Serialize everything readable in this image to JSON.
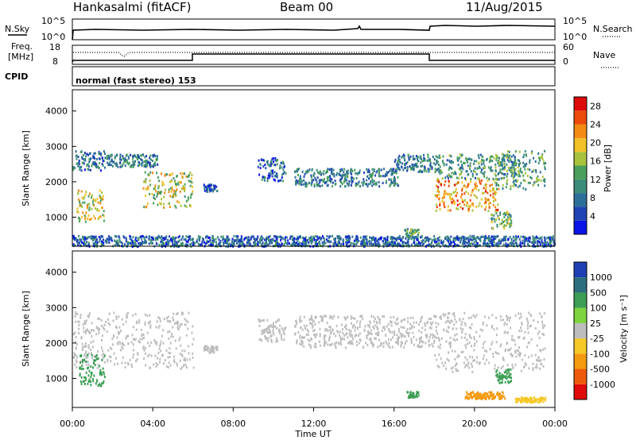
{
  "header": {
    "station": "Hankasalmi (fitACF)",
    "beam": "Beam 00",
    "date": "11/Aug/2015"
  },
  "top_panels": {
    "nsky_label": "N.Sky",
    "nsearch_label": "N.Search",
    "nsky_ticks": [
      "10^5",
      "10^0"
    ],
    "nsearch_ticks": [
      "10^5",
      "10^0"
    ],
    "freq_label": "Freq.",
    "freq_unit": "[MHz]",
    "freq_ticks": [
      "18",
      "8"
    ],
    "nave_label": "Nave",
    "nave_ticks": [
      "60",
      "0"
    ],
    "cpid_label": "CPID",
    "cpid_text": "normal (fast stereo) 153"
  },
  "x_axis": {
    "label": "Time UT",
    "ticks": [
      "00:00",
      "04:00",
      "08:00",
      "12:00",
      "16:00",
      "20:00",
      "00:00"
    ]
  },
  "power_panel": {
    "ylabel": "Slant Range [km]",
    "yticks": [
      "4000",
      "3000",
      "2000",
      "1000"
    ],
    "colorbar_label": "Power [dB]",
    "colorbar_ticks": [
      "28",
      "24",
      "20",
      "16",
      "12",
      "8",
      "4"
    ]
  },
  "velocity_panel": {
    "ylabel": "Slant Range [km]",
    "yticks": [
      "4000",
      "3000",
      "2000",
      "1000"
    ],
    "colorbar_label": "Velocity [m s⁻¹]",
    "colorbar_ticks": [
      "1000",
      "500",
      "100",
      "25",
      "-25",
      "-100",
      "-500",
      "-1000"
    ]
  },
  "chart_data": [
    {
      "type": "heatmap",
      "title": "Power",
      "xlabel": "Time UT",
      "ylabel": "Slant Range [km]",
      "xlim_hours": [
        0,
        24
      ],
      "ylim_km": [
        180,
        4600
      ],
      "color_scale": [
        "#0a14e6",
        "#1f44b4",
        "#2c6f9a",
        "#3c8c7a",
        "#4a9f5c",
        "#a8c23c",
        "#f2c028",
        "#f28a14",
        "#ec4a0a",
        "#dc0a0a"
      ],
      "colorbar_range_db": [
        0,
        30
      ],
      "regions": [
        {
          "t0": 0.0,
          "t1": 1.6,
          "r0": 2350,
          "r1": 2900,
          "level": 8
        },
        {
          "t0": 0.2,
          "t1": 1.6,
          "r0": 900,
          "r1": 1800,
          "level": 18
        },
        {
          "t0": 1.6,
          "t1": 4.2,
          "r0": 2450,
          "r1": 2800,
          "level": 9
        },
        {
          "t0": 3.5,
          "t1": 6.0,
          "r0": 1300,
          "r1": 2300,
          "level": 17
        },
        {
          "t0": 6.5,
          "t1": 7.2,
          "r0": 1750,
          "r1": 1950,
          "level": 6
        },
        {
          "t0": 9.2,
          "t1": 10.6,
          "r0": 2050,
          "r1": 2700,
          "level": 7
        },
        {
          "t0": 11.0,
          "t1": 16.2,
          "r0": 1900,
          "r1": 2400,
          "level": 9
        },
        {
          "t0": 16.0,
          "t1": 18.0,
          "r0": 2300,
          "r1": 2800,
          "level": 9
        },
        {
          "t0": 18.0,
          "t1": 21.2,
          "r0": 1200,
          "r1": 2100,
          "level": 22
        },
        {
          "t0": 18.0,
          "t1": 22.2,
          "r0": 2100,
          "r1": 2800,
          "level": 11
        },
        {
          "t0": 21.0,
          "t1": 23.5,
          "r0": 1800,
          "r1": 2900,
          "level": 12
        },
        {
          "t0": 0.0,
          "t1": 24.0,
          "r0": 200,
          "r1": 500,
          "level": 7
        },
        {
          "t0": 16.5,
          "t1": 17.2,
          "r0": 450,
          "r1": 700,
          "level": 12
        },
        {
          "t0": 20.8,
          "t1": 21.8,
          "r0": 700,
          "r1": 1200,
          "level": 14
        }
      ]
    },
    {
      "type": "heatmap",
      "title": "Velocity",
      "xlabel": "Time UT",
      "ylabel": "Slant Range [km]",
      "xlim_hours": [
        0,
        24
      ],
      "ylim_km": [
        180,
        4600
      ],
      "colorbar_range_ms": [
        -1000,
        1000
      ],
      "color_scale": [
        "#e00a0a",
        "#ee5a0c",
        "#f49a10",
        "#f6c826",
        "#bdbdbd",
        "#7ed43e",
        "#3c9e54",
        "#2c6e7e",
        "#1f40b4"
      ],
      "regions": [
        {
          "t0": 0.0,
          "t1": 6.0,
          "r0": 1300,
          "r1": 2900,
          "value": 0
        },
        {
          "t0": 0.3,
          "t1": 1.6,
          "r0": 800,
          "r1": 1700,
          "value": 200
        },
        {
          "t0": 6.5,
          "t1": 7.2,
          "r0": 1750,
          "r1": 1950,
          "value": 0
        },
        {
          "t0": 9.2,
          "t1": 10.6,
          "r0": 2050,
          "r1": 2700,
          "value": 0
        },
        {
          "t0": 11.0,
          "t1": 18.0,
          "r0": 1900,
          "r1": 2800,
          "value": 0
        },
        {
          "t0": 18.0,
          "t1": 23.5,
          "r0": 1200,
          "r1": 2900,
          "value": 0
        },
        {
          "t0": 19.5,
          "t1": 21.5,
          "r0": 450,
          "r1": 650,
          "value": -150
        },
        {
          "t0": 21.0,
          "t1": 21.8,
          "r0": 900,
          "r1": 1300,
          "value": 300
        },
        {
          "t0": 16.6,
          "t1": 17.2,
          "r0": 480,
          "r1": 650,
          "value": 150
        },
        {
          "t0": 22.0,
          "t1": 23.5,
          "r0": 350,
          "r1": 500,
          "value": -60
        }
      ]
    }
  ]
}
